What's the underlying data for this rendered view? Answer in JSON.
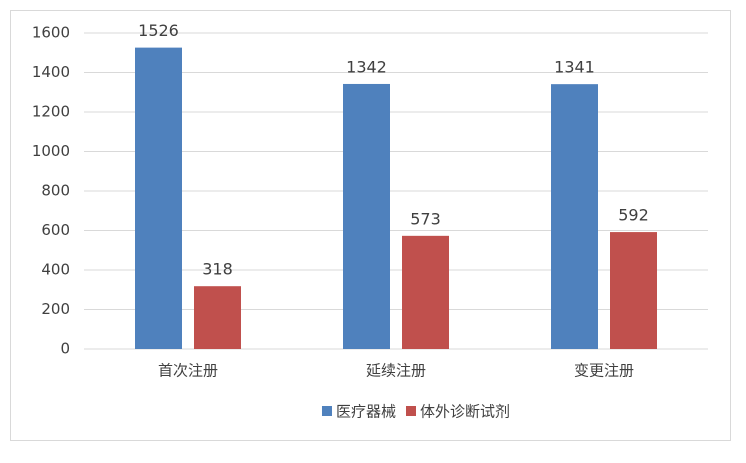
{
  "chart_data": {
    "type": "bar",
    "categories": [
      "首次注册",
      "延续注册",
      "变更注册"
    ],
    "series": [
      {
        "name": "医疗器械",
        "color": "#4f81bd",
        "values": [
          1526,
          1342,
          1341
        ]
      },
      {
        "name": "体外诊断试剂",
        "color": "#c0504d",
        "values": [
          318,
          573,
          592
        ]
      }
    ],
    "ylim": [
      0,
      1600
    ],
    "yticks": [
      0,
      200,
      400,
      600,
      800,
      1000,
      1200,
      1400,
      1600
    ],
    "grid": true,
    "legend": "bottom"
  }
}
